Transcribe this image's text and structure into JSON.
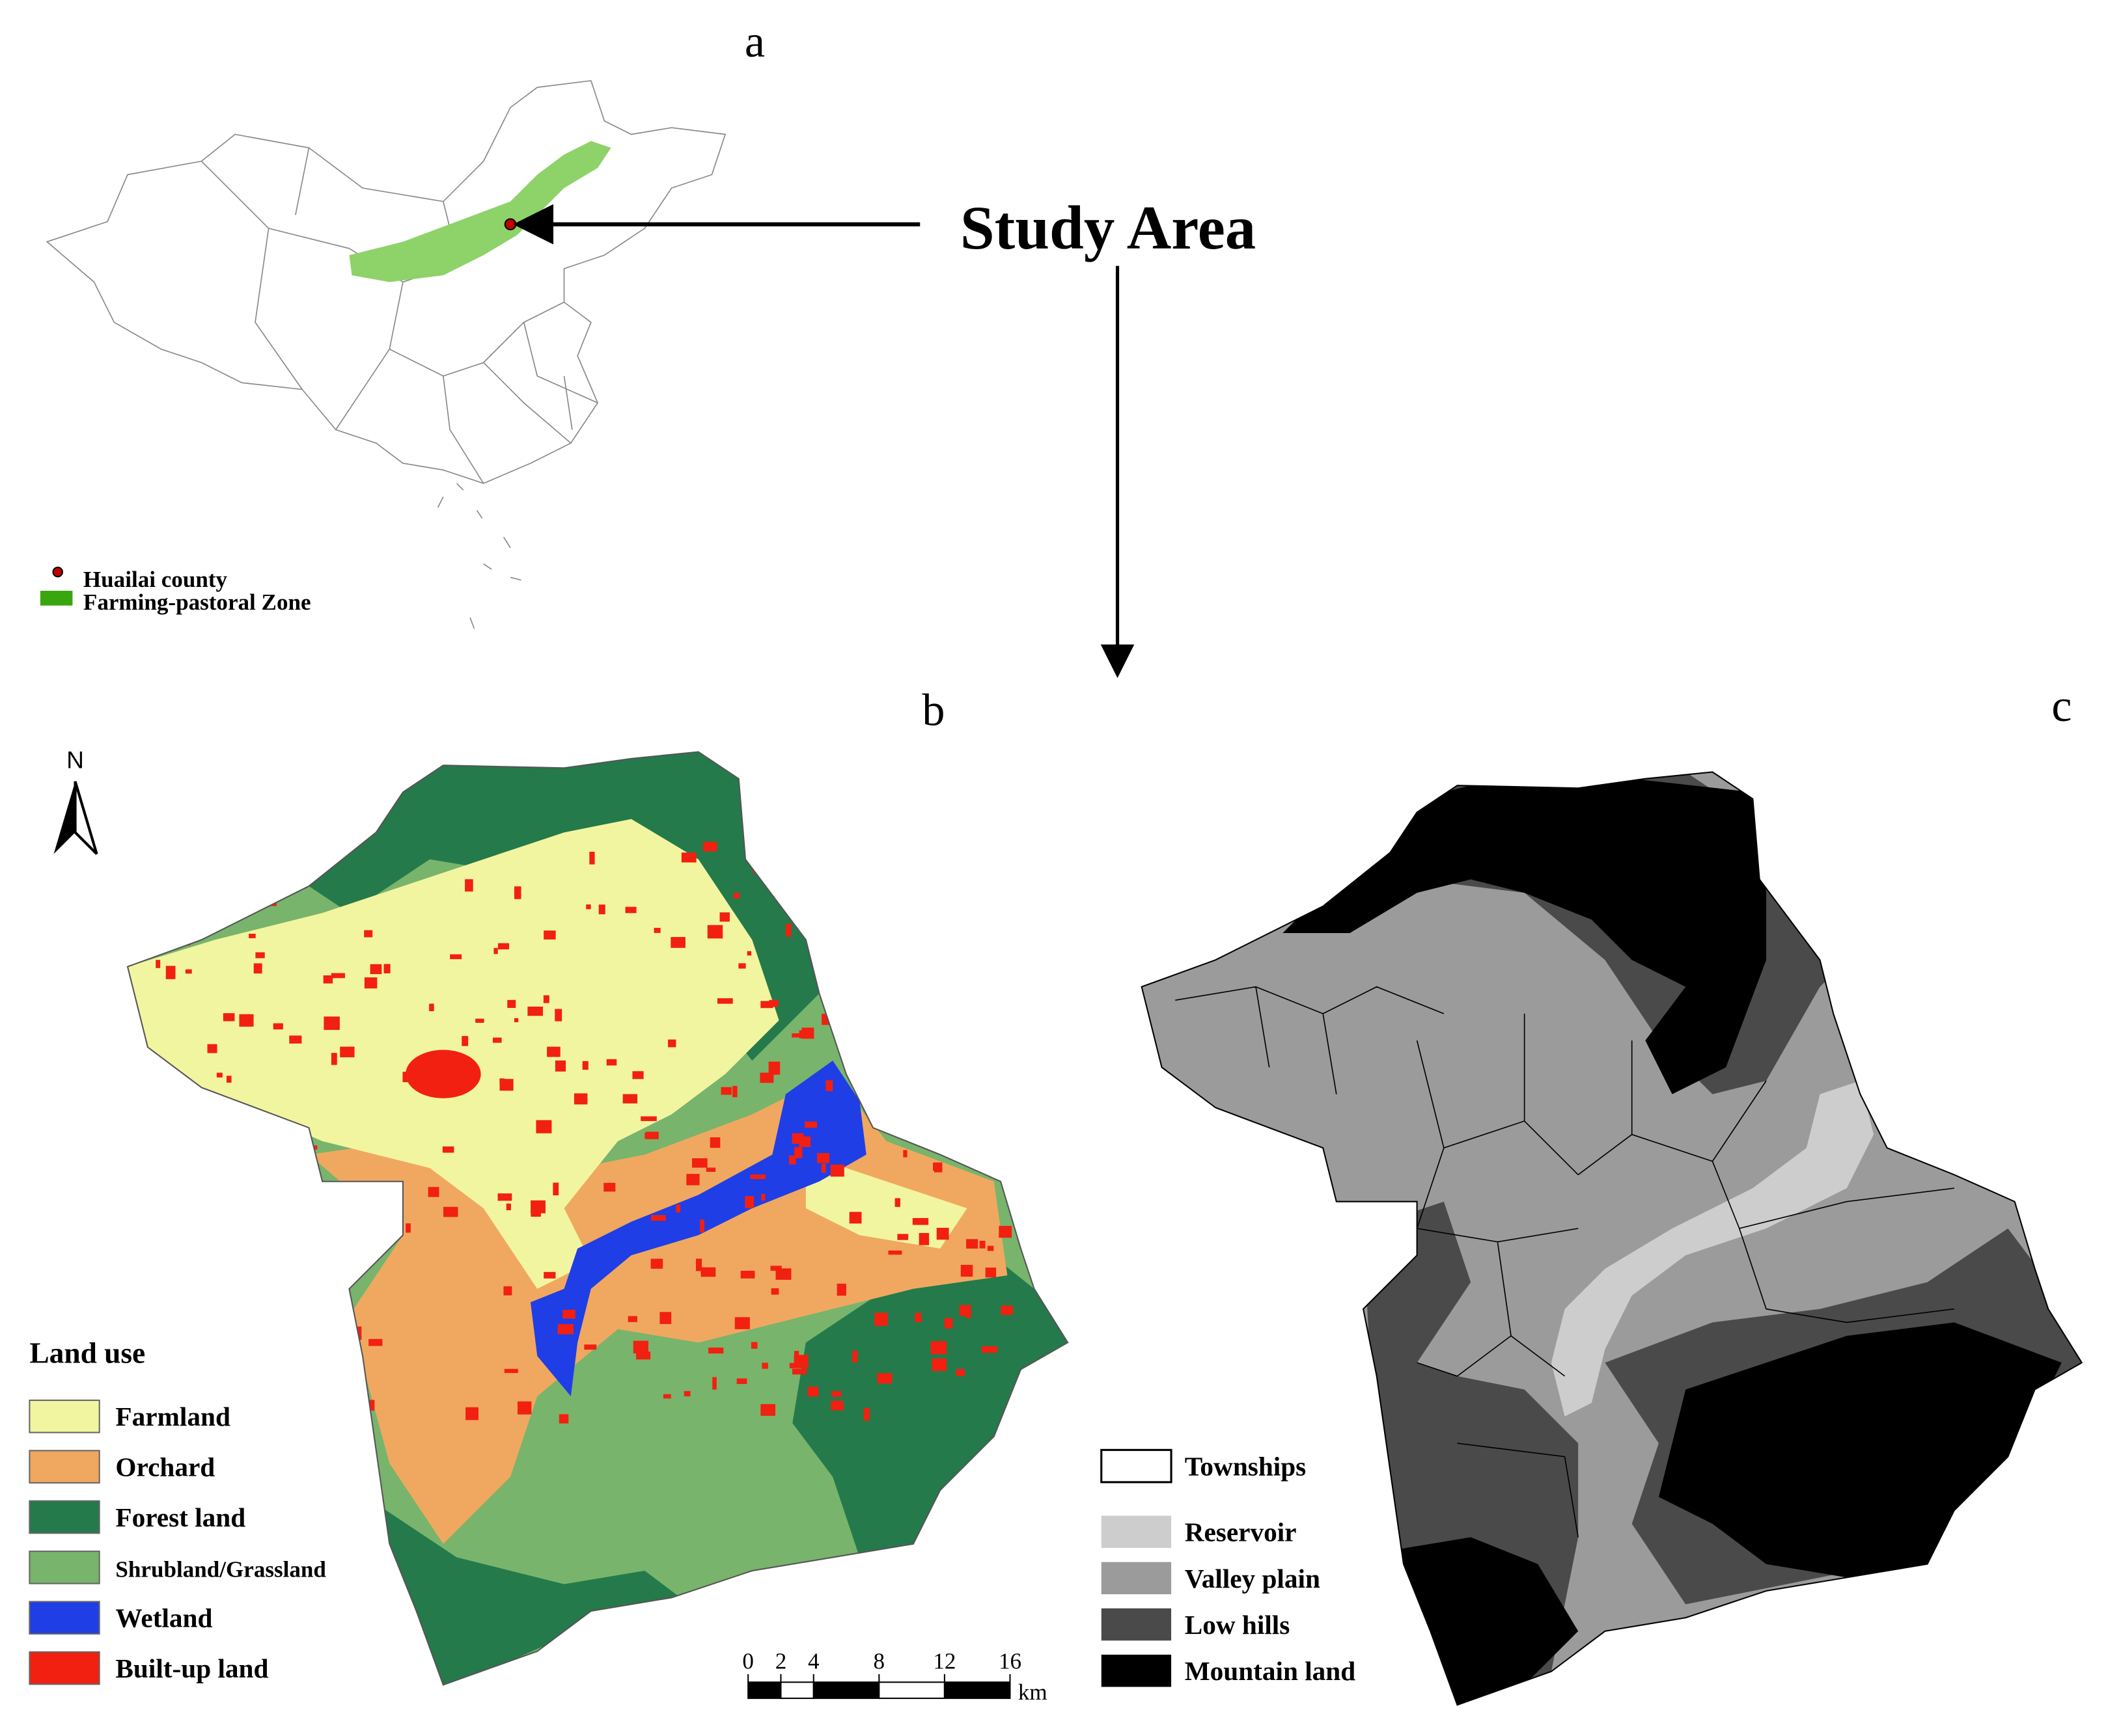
{
  "panel_a": {
    "label": "a",
    "legend": [
      {
        "label": "Huailai county",
        "color": "#c00000"
      },
      {
        "label": "Farming-pastoral Zone",
        "color": "#3aa60f"
      }
    ],
    "zone_color": "#8ed26a"
  },
  "callout": "Study Area",
  "panel_b": {
    "label": "b",
    "north": "N",
    "legend_title": "Land use",
    "legend": [
      {
        "label": "Farmland",
        "color": "#f2f5a0"
      },
      {
        "label": "Orchard",
        "color": "#f0a860"
      },
      {
        "label": "Forest land",
        "color": "#247a4a"
      },
      {
        "label": "Shrubland/Grassland",
        "color": "#78b46c"
      },
      {
        "label": "Wetland",
        "color": "#1f3ee6"
      },
      {
        "label": "Built-up land",
        "color": "#f22010"
      }
    ],
    "scale_bar": {
      "ticks": [
        0,
        2,
        4,
        8,
        12,
        16
      ],
      "unit": "km"
    }
  },
  "panel_c": {
    "label": "c",
    "legend": [
      {
        "label": "Townships",
        "color": "#ffffff"
      },
      {
        "label": "Reservoir",
        "color": "#cdcdcd"
      },
      {
        "label": "Valley plain",
        "color": "#9b9b9b"
      },
      {
        "label": "Low hills",
        "color": "#4a4a4a"
      },
      {
        "label": "Mountain land",
        "color": "#000000"
      }
    ]
  }
}
